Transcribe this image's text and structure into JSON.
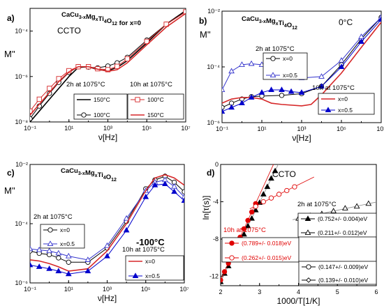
{
  "chart_data": [
    {
      "type": "line",
      "panel_label": "a)",
      "title": "CaCu3-xMgxTi4O12  for x=0",
      "inner_label": "CCTO",
      "xlabel": "ν[Hz]",
      "ylabel": "M''",
      "x_scale": "log",
      "y_scale": "log",
      "xlim": [
        0.1,
        10000000
      ],
      "ylim": [
        1e-08,
        0.001
      ],
      "xticks": [
        "10⁻¹",
        "10¹",
        "10³",
        "10⁵",
        "10⁷"
      ],
      "yticks": [
        "10⁻⁸",
        "10⁻⁶",
        "10⁻⁴"
      ],
      "legend": [
        {
          "header": "2h at 1075°C",
          "entries": [
            "150°C",
            "100°C"
          ]
        },
        {
          "header": "10h at 1075°C",
          "entries": [
            "100°C",
            "150°C"
          ]
        }
      ],
      "series": [
        {
          "name": "150°C",
          "group": "2h at 1075°C",
          "color": "#000000",
          "marker": "none",
          "x": [
            0.1,
            0.3,
            1,
            3,
            10,
            30,
            100,
            300,
            1000,
            3000,
            10000,
            100000,
            1000000,
            10000000
          ],
          "y": [
            1e-08,
            3e-08,
            1e-07,
            3e-07,
            1e-06,
            2.5e-06,
            2.7e-06,
            2e-06,
            1.8e-06,
            2.5e-06,
            5e-06,
            3e-05,
            0.0002,
            0.0008
          ]
        },
        {
          "name": "100°C",
          "group": "2h at 1075°C",
          "color": "#000000",
          "marker": "open-circle",
          "x": [
            0.1,
            0.3,
            1,
            3,
            10,
            30,
            100,
            300,
            1000,
            3000,
            10000,
            100000,
            1000000,
            10000000
          ],
          "y": [
            1.4e-08,
            5e-08,
            1.8e-07,
            5.5e-07,
            1.5e-06,
            2.7e-06,
            2.6e-06,
            2.4e-06,
            2.9e-06,
            4e-06,
            7e-06,
            4e-05,
            0.0002,
            0.0007
          ]
        },
        {
          "name": "100°C",
          "group": "10h at 1075°C",
          "color": "#d62728",
          "marker": "open-square",
          "x": [
            0.1,
            0.3,
            1,
            3,
            10,
            30,
            100,
            300,
            1000,
            3000,
            10000,
            100000,
            1000000,
            10000000
          ],
          "y": [
            3e-08,
            1e-07,
            3e-07,
            8e-07,
            1.8e-06,
            2.7e-06,
            2.7e-06,
            2.2e-06,
            2e-06,
            2.8e-06,
            6e-06,
            3.5e-05,
            0.0002,
            0.0007
          ]
        },
        {
          "name": "150°C",
          "group": "10h at 1075°C",
          "color": "#d62728",
          "marker": "none",
          "x": [
            0.1,
            0.3,
            1,
            3,
            10,
            30,
            100,
            300,
            1000,
            3000,
            10000,
            100000,
            1000000,
            10000000
          ],
          "y": [
            2e-08,
            6e-08,
            2e-07,
            6e-07,
            1.6e-06,
            2.7e-06,
            2.7e-06,
            2.1e-06,
            1.7e-06,
            2e-06,
            4e-06,
            2.5e-05,
            0.00015,
            0.0006
          ]
        }
      ]
    },
    {
      "type": "line",
      "panel_label": "b)",
      "title": "CaCu3-xMgxTi4O12",
      "inner_label": "0°C",
      "xlabel": "ν[Hz]",
      "ylabel": "M''",
      "x_scale": "log",
      "y_scale": "log",
      "xlim": [
        0.1,
        10000000
      ],
      "ylim": [
        1e-06,
        0.01
      ],
      "xticks": [
        "10⁻¹",
        "10¹",
        "10³",
        "10⁵",
        "10⁷"
      ],
      "yticks": [
        "10⁻⁶",
        "10⁻⁴",
        "10⁻²"
      ],
      "legend": [
        {
          "header": "2h at 1075°C",
          "entries": [
            "x=0",
            "x=0.5"
          ]
        },
        {
          "header": "10h at 1075°C",
          "entries": [
            "x=0",
            "x=0.5"
          ]
        }
      ],
      "series": [
        {
          "name": "x=0",
          "group": "2h at 1075°C",
          "color": "#000000",
          "marker": "open-circle",
          "x": [
            0.1,
            0.3,
            1,
            3,
            10,
            100,
            1000,
            10000,
            100000,
            1000000,
            10000000
          ],
          "y": [
            3.5e-06,
            5e-06,
            7e-06,
            8.5e-06,
            9e-06,
            9.5e-06,
            1.1e-05,
            2e-05,
            0.00012,
            0.001,
            0.006
          ]
        },
        {
          "name": "x=0.5",
          "group": "2h at 1075°C",
          "color": "#3333cc",
          "marker": "open-triangle",
          "x": [
            0.1,
            0.3,
            1,
            3,
            10,
            100,
            1000,
            10000,
            100000,
            1000000,
            10000000
          ],
          "y": [
            1.5e-05,
            7e-05,
            0.00012,
            0.00013,
            0.00012,
            7e-05,
            4e-05,
            4.5e-05,
            0.00017,
            0.0012,
            0.006
          ]
        },
        {
          "name": "x=0",
          "group": "10h at 1075°C",
          "color": "#d62728",
          "marker": "none",
          "x": [
            0.1,
            0.3,
            1,
            3,
            10,
            30,
            100,
            1000,
            3000,
            10000,
            100000,
            1000000,
            10000000
          ],
          "y": [
            5e-06,
            7e-06,
            8e-06,
            8e-06,
            7e-06,
            5e-06,
            4.5e-06,
            4e-06,
            4.5e-06,
            1e-05,
            6e-05,
            0.0005,
            0.004
          ]
        },
        {
          "name": "x=0.5",
          "group": "10h at 1075°C",
          "color": "#0000cc",
          "marker": "filled-triangle",
          "x": [
            0.1,
            0.3,
            1,
            3,
            10,
            30,
            100,
            300,
            1000,
            10000,
            100000,
            1000000,
            10000000
          ],
          "y": [
            2.5e-06,
            3.5e-06,
            5e-06,
            8e-06,
            1.2e-05,
            1.5e-05,
            1.5e-05,
            1.3e-05,
            1.2e-05,
            2e-05,
            0.0001,
            0.0008,
            0.005
          ]
        }
      ]
    },
    {
      "type": "line",
      "panel_label": "c)",
      "title": "CaCu3-xMgxTi4O12",
      "inner_label": "-100°C",
      "xlabel": "ν[Hz]",
      "ylabel": "M''",
      "x_scale": "log",
      "y_scale": "log",
      "xlim": [
        0.1,
        10000000
      ],
      "ylim": [
        1e-06,
        0.01
      ],
      "xticks": [
        "10⁻¹",
        "10¹",
        "10³",
        "10⁵",
        "10⁷"
      ],
      "yticks": [
        "10⁻⁶",
        "10⁻⁴",
        "10⁻²"
      ],
      "legend": [
        {
          "header": "2h at 1075°C",
          "entries": [
            "x=0",
            "x=0.5"
          ]
        },
        {
          "header": "10h at 1075°C",
          "entries": [
            "x=0",
            "x=0.5"
          ]
        }
      ],
      "series": [
        {
          "name": "x=0",
          "group": "2h at 1075°C",
          "color": "#000000",
          "marker": "open-circle",
          "x": [
            0.1,
            0.3,
            1,
            3,
            10,
            100,
            1000,
            10000,
            100000,
            300000,
            1000000,
            3000000,
            10000000
          ],
          "y": [
            1.2e-05,
            1e-05,
            9e-06,
            7e-06,
            5e-06,
            5e-06,
            1.5e-05,
            0.00012,
            0.0015,
            0.003,
            0.004,
            0.0025,
            0.0012
          ]
        },
        {
          "name": "x=0.5",
          "group": "2h at 1075°C",
          "color": "#3333cc",
          "marker": "open-triangle",
          "x": [
            0.1,
            0.3,
            1,
            3,
            10,
            100,
            1000,
            10000,
            100000,
            300000,
            1000000,
            3000000,
            10000000
          ],
          "y": [
            1.4e-05,
            1.3e-05,
            1.2e-05,
            1e-05,
            8e-06,
            6e-06,
            1.8e-05,
            0.00015,
            0.0013,
            0.0025,
            0.003,
            0.0018,
            0.0008
          ]
        },
        {
          "name": "x=0",
          "group": "10h at 1075°C",
          "color": "#d62728",
          "marker": "none",
          "x": [
            0.1,
            0.3,
            1,
            3,
            10,
            100,
            1000,
            10000,
            100000,
            300000,
            1000000,
            3000000,
            10000000
          ],
          "y": [
            6e-06,
            5.5e-06,
            4.5e-06,
            3.5e-06,
            2.5e-06,
            3e-06,
            1.2e-05,
            0.0001,
            0.0013,
            0.0035,
            0.0045,
            0.0035,
            0.002
          ]
        },
        {
          "name": "x=0.5",
          "group": "10h at 1075°C",
          "color": "#0000cc",
          "marker": "filled-triangle",
          "x": [
            0.1,
            0.3,
            1,
            3,
            10,
            100,
            1000,
            10000,
            100000,
            300000,
            1000000,
            3000000,
            10000000
          ],
          "y": [
            4e-06,
            3.5e-06,
            3e-06,
            2.5e-06,
            2e-06,
            2.5e-06,
            8e-06,
            6e-05,
            0.0008,
            0.002,
            0.0022,
            0.0012,
            0.0006
          ]
        }
      ]
    },
    {
      "type": "scatter",
      "panel_label": "d)",
      "inner_label": "CCTO",
      "xlabel": "1000/T[1/K]",
      "ylabel": "ln[τ(s)]",
      "xlim": [
        2,
        6
      ],
      "ylim": [
        -13,
        0
      ],
      "xticks": [
        "2",
        "3",
        "4",
        "5",
        "6"
      ],
      "yticks": [
        "-12",
        "-8",
        "-4",
        "0"
      ],
      "legend": [
        {
          "header": "2h at 1075°C",
          "entries": [
            "(0.752+/- 0.004)eV",
            "(0.211+/- 0.012)eV"
          ]
        },
        {
          "header": "10h at 1075°C",
          "entries": [
            "(0.789+/- 0.018)eV",
            "(0.262+/- 0.015)eV"
          ]
        },
        {
          "header": "",
          "entries": [
            "(0.147+/- 0.009)eV",
            "(0.139+/- 0.010)eV"
          ]
        }
      ],
      "series": [
        {
          "name": "(0.752+/- 0.004)eV",
          "group": "2h at 1075°C",
          "color": "#000000",
          "marker": "filled-triangle",
          "x": [
            2.0,
            2.1,
            2.2,
            2.3,
            2.4,
            2.5,
            2.6,
            2.7,
            2.8,
            2.9,
            3.0,
            3.1,
            3.2,
            3.3,
            3.4
          ],
          "y": [
            -12.6,
            -11.7,
            -10.9,
            -10.0,
            -9.2,
            -8.3,
            -7.5,
            -6.6,
            -5.8,
            -4.9,
            -4.1,
            -3.2,
            -2.4,
            -1.5,
            -0.7
          ]
        },
        {
          "name": "(0.211+/- 0.012)eV",
          "group": "2h at 1075°C",
          "color": "#000000",
          "marker": "open-triangle",
          "x": [
            4.0,
            4.3,
            4.6,
            4.9,
            5.2,
            5.5,
            5.8
          ],
          "y": [
            -5.8,
            -5.5,
            -5.3,
            -5.0,
            -4.7,
            -4.5,
            -4.2
          ]
        },
        {
          "name": "(0.789+/- 0.018)eV",
          "group": "10h at 1075°C",
          "color": "#e00000",
          "marker": "filled-circle",
          "x": [
            2.0,
            2.1,
            2.2,
            2.3,
            2.4,
            2.5,
            2.6,
            2.7,
            2.8,
            2.9
          ],
          "y": [
            -12.4,
            -11.5,
            -10.6,
            -9.6,
            -8.7,
            -7.8,
            -6.9,
            -6.0,
            -5.1,
            -4.2
          ]
        },
        {
          "name": "(0.262+/- 0.015)eV",
          "group": "10h at 1075°C",
          "color": "#e00000",
          "marker": "open-circle",
          "x": [
            2.9,
            3.1,
            3.3,
            3.5,
            3.7,
            3.9
          ],
          "y": [
            -4.5,
            -4.0,
            -3.6,
            -3.2,
            -2.8,
            -2.4
          ]
        },
        {
          "name": "(0.147+/- 0.009)eV",
          "group": "",
          "color": "#000000",
          "marker": "open-circle",
          "x": [
            4.8,
            5.0,
            5.2,
            5.4,
            5.6,
            5.8
          ],
          "y": [
            -11.7,
            -11.5,
            -11.3,
            -11.2,
            -11.0,
            -10.8
          ]
        },
        {
          "name": "(0.139+/- 0.010)eV",
          "group": "",
          "color": "#000000",
          "marker": "open-diamond",
          "x": [
            4.9,
            5.1,
            5.3,
            5.5,
            5.7
          ],
          "y": [
            -11.8,
            -11.6,
            -11.5,
            -11.3,
            -11.2
          ]
        }
      ]
    }
  ]
}
